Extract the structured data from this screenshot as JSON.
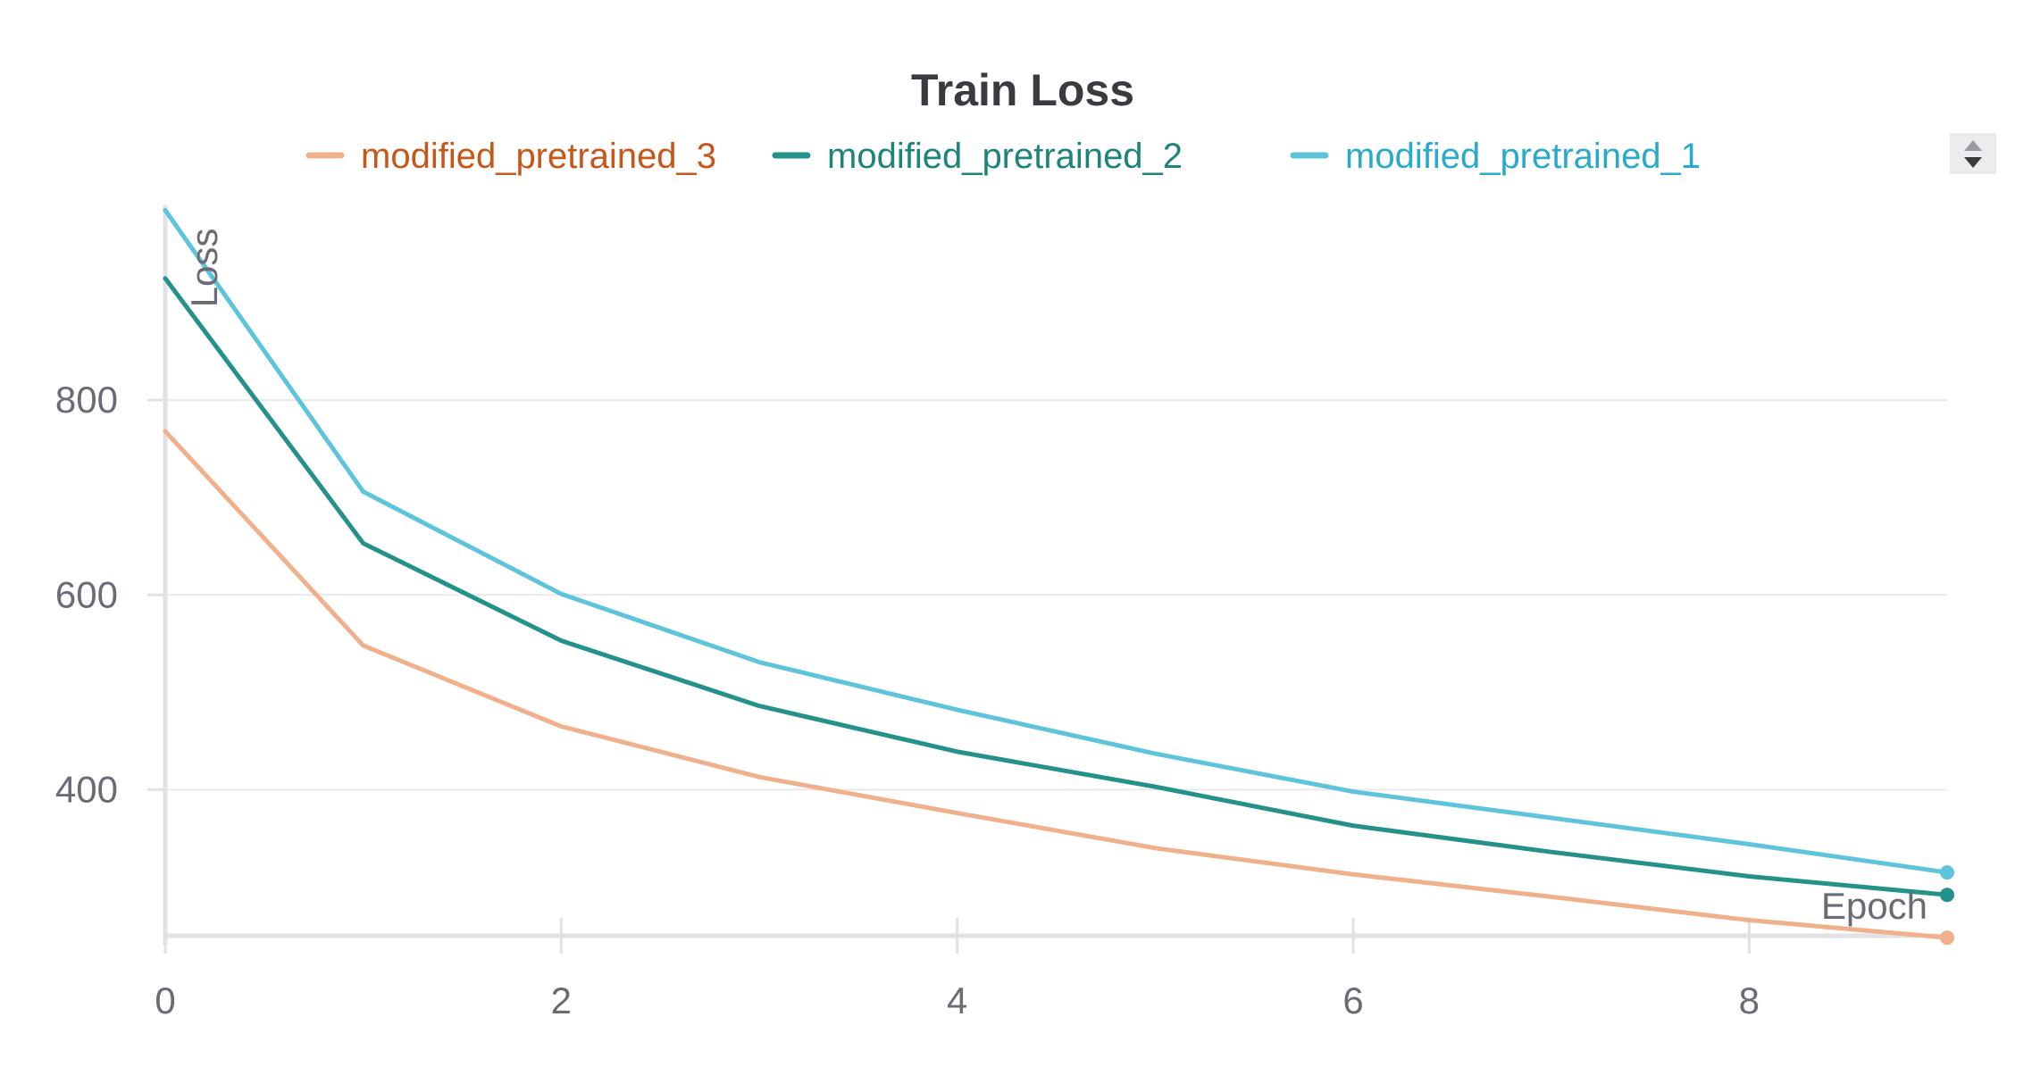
{
  "chart_data": {
    "type": "line",
    "title": "Train Loss",
    "xlabel": "Epoch",
    "ylabel": "Loss",
    "x": [
      0,
      1,
      2,
      3,
      4,
      5,
      6,
      7,
      8,
      9
    ],
    "xlim": [
      0,
      9
    ],
    "ylim": [
      250,
      1000
    ],
    "xticks": [
      0,
      2,
      4,
      6,
      8
    ],
    "yticks": [
      400,
      600,
      800
    ],
    "grid": "horizontal",
    "legend_position": "top",
    "series": [
      {
        "name": "modified_pretrained_3",
        "color": "#f0b08c",
        "label_color": "#c7561a",
        "values": [
          768,
          548,
          465,
          413,
          376,
          340,
          313,
          290,
          266,
          248
        ]
      },
      {
        "name": "modified_pretrained_2",
        "color": "#24928a",
        "label_color": "#1d8479",
        "values": [
          925,
          653,
          553,
          486,
          439,
          403,
          363,
          336,
          311,
          292
        ]
      },
      {
        "name": "modified_pretrained_1",
        "color": "#5ec4db",
        "label_color": "#29a9cc",
        "values": [
          995,
          706,
          601,
          531,
          482,
          437,
          398,
          371,
          344,
          315
        ]
      }
    ]
  }
}
